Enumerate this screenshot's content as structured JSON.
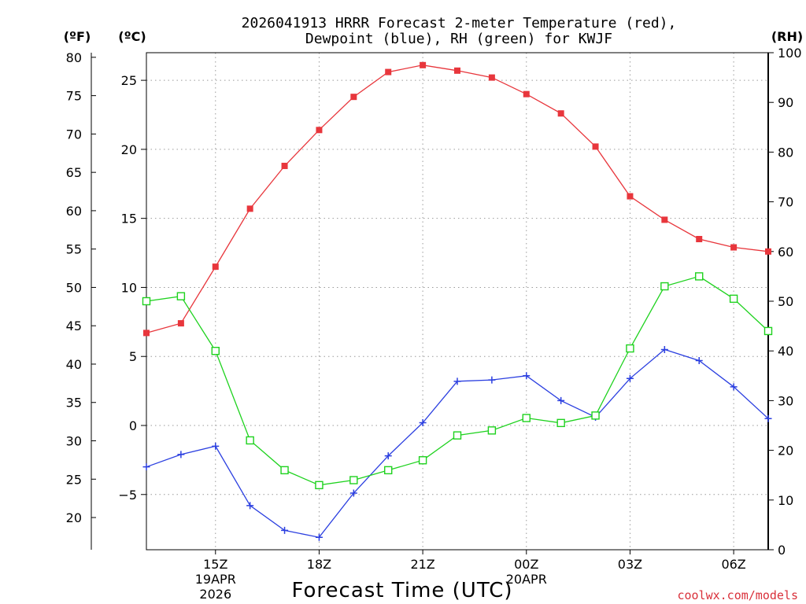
{
  "chart_data": {
    "type": "line",
    "title_line1": "2026041913 HRRR Forecast 2-meter Temperature (red),",
    "title_line2": "Dewpoint (blue), RH (green) for KWJF",
    "xlabel": "Forecast Time (UTC)",
    "units": {
      "f": "(ºF)",
      "c": "(ºC)",
      "rh": "(RH)"
    },
    "x_hours": [
      13,
      14,
      15,
      16,
      17,
      18,
      19,
      20,
      21,
      22,
      23,
      24,
      25,
      26,
      27,
      28,
      29,
      30,
      31
    ],
    "xlim": [
      13,
      31
    ],
    "c_axis": {
      "range": [
        -9,
        27
      ],
      "ticks": [
        -5,
        0,
        5,
        10,
        15,
        20,
        25
      ],
      "labels": [
        "−5",
        "0",
        "5",
        "10",
        "15",
        "20",
        "25"
      ]
    },
    "f_axis": {
      "ticks": [
        20,
        25,
        30,
        35,
        40,
        45,
        50,
        55,
        60,
        65,
        70,
        75,
        80
      ]
    },
    "rh_axis": {
      "range": [
        0,
        100
      ],
      "ticks": [
        0,
        10,
        20,
        30,
        40,
        50,
        60,
        70,
        80,
        90,
        100
      ]
    },
    "x_ticks": [
      {
        "hour": 15,
        "label": "15Z",
        "date1": "19APR",
        "date2": "2026"
      },
      {
        "hour": 18,
        "label": "18Z"
      },
      {
        "hour": 21,
        "label": "21Z"
      },
      {
        "hour": 24,
        "label": "00Z",
        "date1": "20APR"
      },
      {
        "hour": 27,
        "label": "03Z"
      },
      {
        "hour": 30,
        "label": "06Z"
      }
    ],
    "series": [
      {
        "name": "Temperature",
        "axis": "c",
        "color": "#e8363c",
        "marker": "filled-square",
        "values": [
          6.7,
          7.4,
          11.5,
          15.7,
          18.8,
          21.4,
          23.8,
          25.6,
          26.1,
          25.7,
          25.2,
          24.0,
          22.6,
          20.2,
          16.6,
          14.9,
          13.5,
          12.9,
          12.6
        ]
      },
      {
        "name": "Dewpoint",
        "axis": "c",
        "color": "#2b3fe0",
        "marker": "plus",
        "values": [
          -3.0,
          -2.1,
          -1.5,
          -5.8,
          -7.6,
          -8.1,
          -4.9,
          -2.2,
          0.2,
          3.2,
          3.3,
          3.6,
          1.8,
          0.6,
          3.4,
          5.5,
          4.7,
          2.8,
          0.5
        ]
      },
      {
        "name": "RH",
        "axis": "rh",
        "color": "#1ed21e",
        "marker": "open-square",
        "values": [
          50,
          51,
          40,
          22,
          16,
          13,
          14,
          16,
          18,
          23,
          24,
          26.5,
          25.5,
          27,
          40.5,
          53,
          55,
          50.5,
          44
        ]
      }
    ]
  },
  "credit": "coolwx.com/models"
}
